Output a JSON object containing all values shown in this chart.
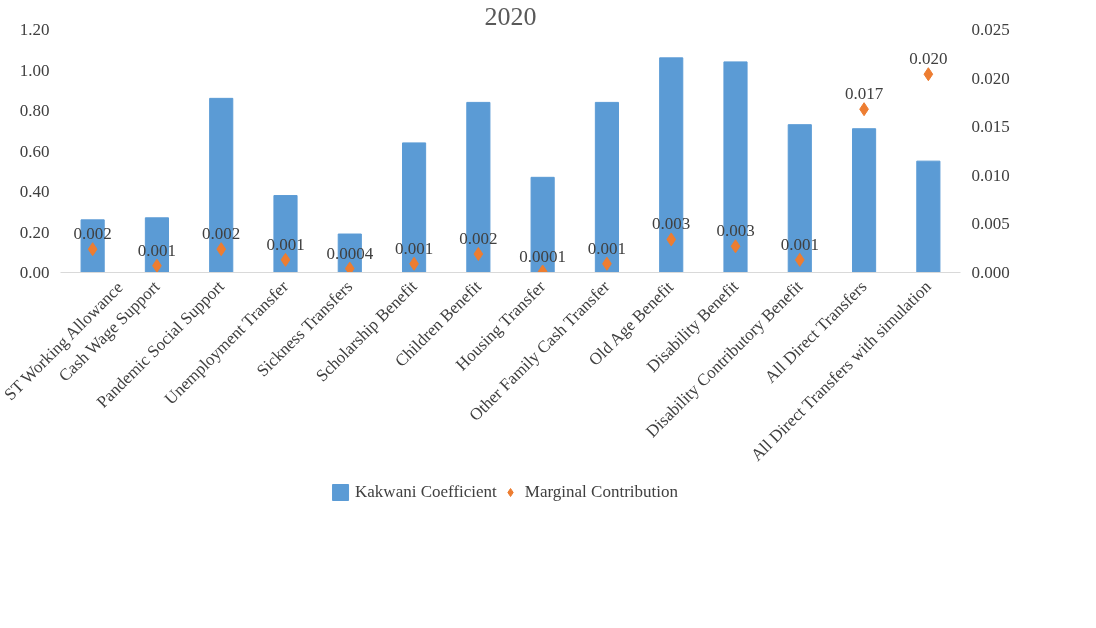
{
  "chart_data": {
    "type": "bar",
    "title": "2020",
    "categories": [
      "ST Working Allowance",
      "Cash Wage Support",
      "Pandemic Social Support",
      "Unemployment Transfer",
      "Sickness Transfers",
      "Scholarship Benefit",
      "Children Benefit",
      "Housing Transfer",
      "Other Family Cash Transfer",
      "Old Age Benefit",
      "Disability Benefit",
      "Disability Contributory Benefit",
      "All Direct Transfers",
      "All Direct Transfers with simulation"
    ],
    "ylim": [
      0,
      1.2
    ],
    "yticks": [
      {
        "value": 0,
        "label": "0.00"
      },
      {
        "value": 0.2,
        "label": "0.20"
      },
      {
        "value": 0.4,
        "label": "0.40"
      },
      {
        "value": 0.6,
        "label": "0.60"
      },
      {
        "value": 0.8,
        "label": "0.80"
      },
      {
        "value": 1.0,
        "label": "1.00"
      },
      {
        "value": 1.2,
        "label": "1.20"
      }
    ],
    "y2lim": [
      0,
      0.025
    ],
    "y2ticks": [
      {
        "value": 0,
        "label": "0.000"
      },
      {
        "value": 0.005,
        "label": "0.005"
      },
      {
        "value": 0.01,
        "label": "0.010"
      },
      {
        "value": 0.015,
        "label": "0.015"
      },
      {
        "value": 0.02,
        "label": "0.020"
      },
      {
        "value": 0.025,
        "label": "0.025"
      }
    ],
    "legend": "bottom",
    "series": [
      {
        "name": "Kakwani Coefficient",
        "color": "#5b9bd5",
        "values": [
          0.26,
          0.27,
          0.86,
          0.38,
          0.19,
          0.64,
          0.84,
          0.47,
          0.84,
          1.06,
          1.04,
          0.73,
          0.71,
          0.55
        ]
      },
      {
        "name": "Marginal Contribution",
        "type": "scatter",
        "axis": "y2",
        "marker": "diamond",
        "color": "#ed7d31",
        "values": [
          0.0024,
          0.0007,
          0.0024,
          0.0013,
          0.0004,
          0.0009,
          0.0019,
          0.0001,
          0.0009,
          0.0034,
          0.0027,
          0.0013,
          0.0168,
          0.0204
        ],
        "value_labels": [
          "0.002",
          "0.001",
          "0.002",
          "0.001",
          "0.0004",
          "0.001",
          "0.002",
          "0.0001",
          "0.001",
          "0.003",
          "0.003",
          "0.001",
          "0.017",
          "0.020"
        ]
      }
    ]
  }
}
